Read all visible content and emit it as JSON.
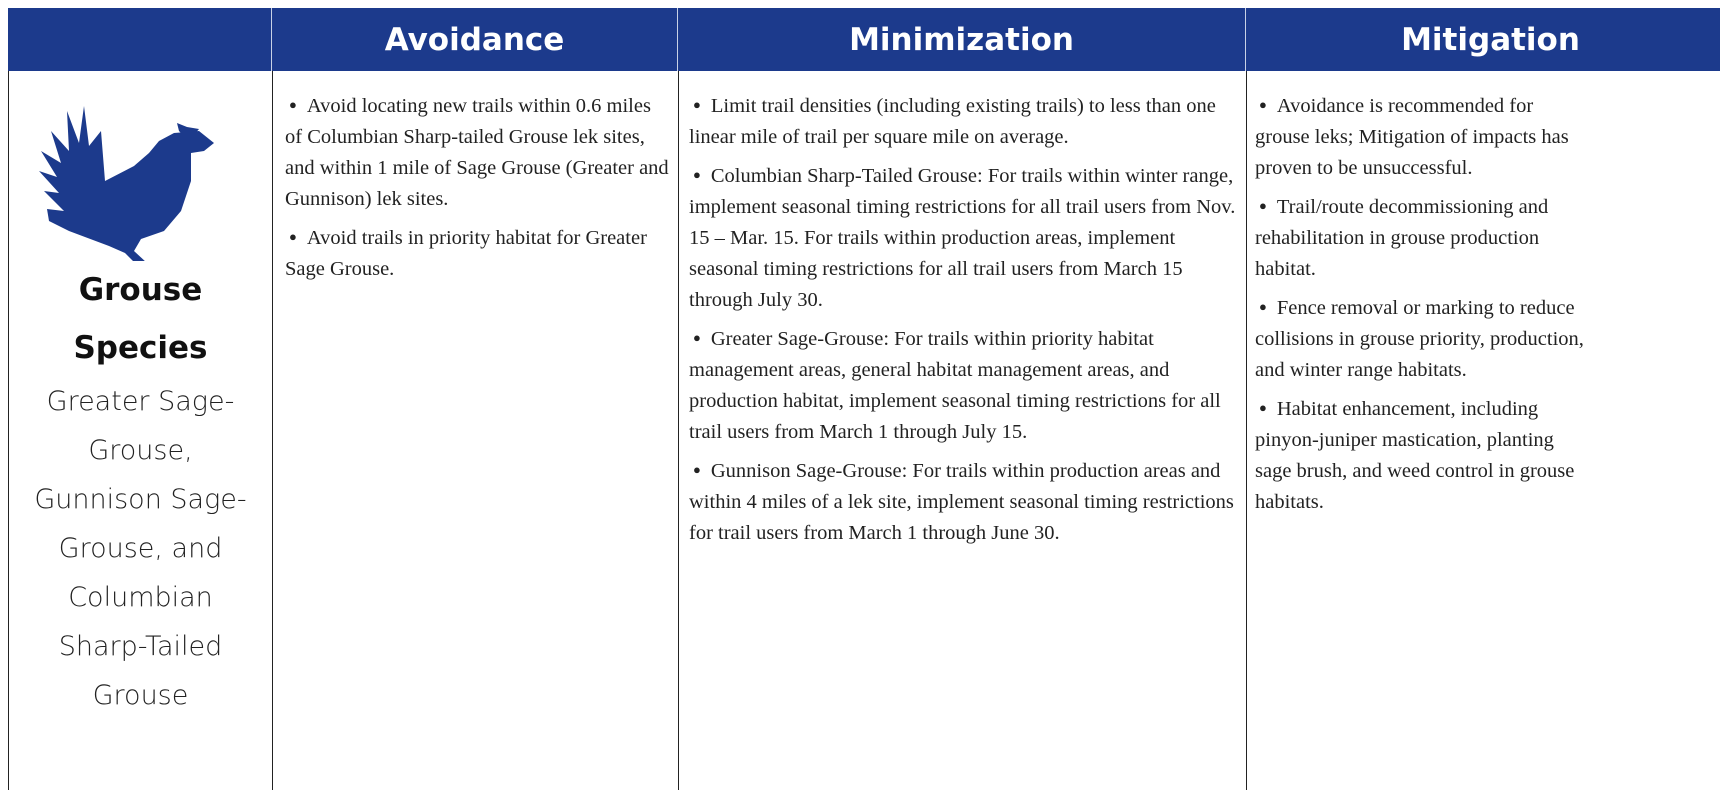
{
  "header": {
    "columns": [
      "Avoidance",
      "Minimization",
      "Mitigation"
    ]
  },
  "rows": [
    {
      "group": "Grouse Species",
      "species": "Greater Sage-Grouse, Gunnison Sage-Grouse, and Columbian Sharp-Tailed Grouse",
      "avoidance": [
        "Avoid locating new trails within 0.6 miles of Columbian Sharp-tailed Grouse lek sites, and within 1 mile of Sage Grouse (Greater and Gunnison) lek sites.",
        "Avoid trails in priority habitat for Greater Sage Grouse."
      ],
      "minimization": [
        "Limit trail densities (including existing trails) to less than one linear mile of trail per square mile on average.",
        "Columbian Sharp-Tailed Grouse: For trails within winter range, implement seasonal timing restrictions for all trail users from Nov. 15 – Mar. 15. For trails within production areas, implement seasonal timing restrictions for all trail users from March 15 through July 30.",
        "Greater Sage-Grouse: For trails within priority habitat management areas, general habitat management areas, and production habitat, implement seasonal timing restrictions for all trail users from March 1 through July 15.",
        "Gunnison Sage-Grouse: For trails within production areas and within 4 miles of a lek site, implement seasonal timing restrictions for trail users from March 1 through June 30."
      ],
      "mitigation": [
        "Avoidance is recommended for grouse leks; Mitigation of impacts has proven to be unsuccessful.",
        "Trail/route decommissioning and rehabilitation in grouse production habitat.",
        "Fence removal or marking to reduce collisions in grouse priority, production, and winter range habitats.",
        "Habitat enhancement, including pinyon-juniper mastication, planting sage brush, and weed control in grouse habitats."
      ]
    }
  ]
}
